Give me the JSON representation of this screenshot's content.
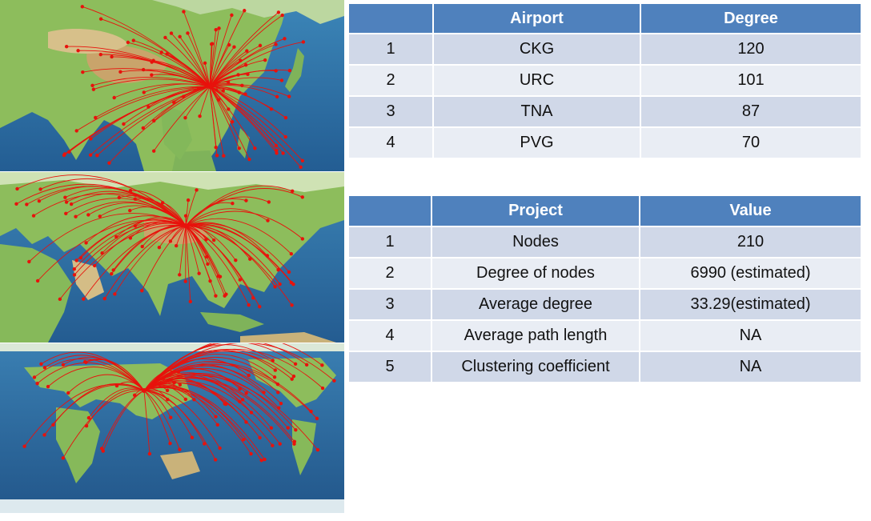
{
  "maps": [
    {
      "view": "east-asia-routes",
      "hub": [
        262,
        108
      ],
      "route_color": "#e8120c"
    },
    {
      "view": "eurasia-routes",
      "hub": [
        232,
        282
      ],
      "route_color": "#e8120c"
    },
    {
      "view": "world-routes",
      "hub": [
        180,
        488
      ],
      "route_color": "#e8120c"
    }
  ],
  "airport_table": {
    "headers": [
      "",
      "Airport",
      "Degree"
    ],
    "rows": [
      {
        "rank": "1",
        "airport": "CKG",
        "degree": "120"
      },
      {
        "rank": "2",
        "airport": "URC",
        "degree": "101"
      },
      {
        "rank": "3",
        "airport": "TNA",
        "degree": "87"
      },
      {
        "rank": "4",
        "airport": "PVG",
        "degree": "70"
      }
    ]
  },
  "project_table": {
    "headers": [
      "",
      "Project",
      "Value"
    ],
    "rows": [
      {
        "rank": "1",
        "project": "Nodes",
        "value": "210"
      },
      {
        "rank": "2",
        "project": "Degree of nodes",
        "value": "6990 (estimated)"
      },
      {
        "rank": "3",
        "project": "Average degree",
        "value": "33.29(estimated)"
      },
      {
        "rank": "4",
        "project": "Average path length",
        "value": "NA"
      },
      {
        "rank": "5",
        "project": "Clustering coefficient",
        "value": "NA"
      }
    ]
  },
  "colors": {
    "header_blue": "#4f81bd",
    "row_dark": "#d0d8e8",
    "row_light": "#e9edf4",
    "route_red": "#e8120c",
    "ocean": "#2e6fa8",
    "land": "#8cbd5a"
  }
}
